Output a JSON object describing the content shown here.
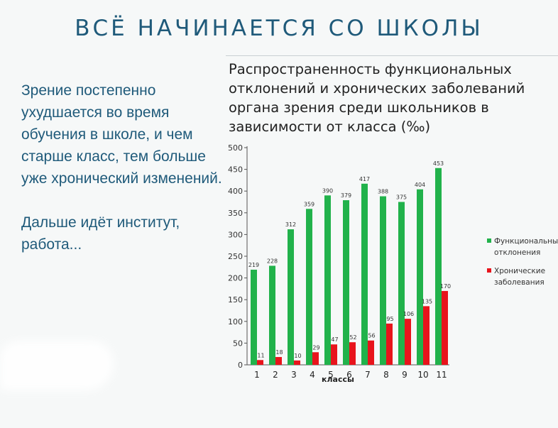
{
  "slide": {
    "title": "ВСЁ НАЧИНАЕТСЯ СО ШКОЛЫ",
    "paragraph1": "Зрение постепенно ухудшается во время обучения в школе, и чем старше класс, тем больше уже хронический изменений.",
    "paragraph2": "Дальше идёт институт, работа..."
  },
  "chart_data": {
    "type": "bar",
    "title": "Распространенность функциональных отклонений и хронических заболеваний органа зрения среди школьников в зависимости от класса (‰)",
    "xlabel": "классы",
    "ylabel": "",
    "ylim": [
      0,
      500
    ],
    "yticks": [
      0,
      50,
      100,
      150,
      200,
      250,
      300,
      350,
      400,
      450,
      500
    ],
    "categories": [
      "1",
      "2",
      "3",
      "4",
      "5",
      "6",
      "7",
      "8",
      "9",
      "10",
      "11"
    ],
    "series": [
      {
        "name": "Функциональные отклонения",
        "color": "#21b24b",
        "values": [
          219,
          228,
          312,
          359,
          390,
          379,
          417,
          388,
          375,
          404,
          453
        ],
        "data_labels": [
          "219",
          "228",
          "312",
          "359",
          "390",
          "379",
          "417",
          "388",
          "375",
          "404",
          "453"
        ]
      },
      {
        "name": "Хронические заболевания",
        "color": "#e8141c",
        "values": [
          11,
          18,
          10,
          29,
          47,
          52,
          56,
          95,
          106,
          135,
          170
        ],
        "data_labels": [
          "11",
          "18",
          "10",
          "29",
          "47",
          "52",
          "56",
          "95",
          "106",
          "135",
          "170"
        ]
      }
    ],
    "legend_position": "right",
    "grid": false
  }
}
